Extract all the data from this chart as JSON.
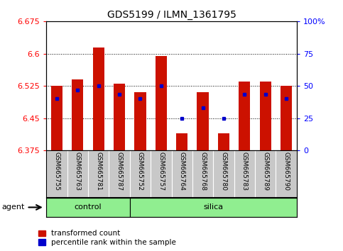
{
  "title": "GDS5199 / ILMN_1361795",
  "samples": [
    "GSM665755",
    "GSM665763",
    "GSM665781",
    "GSM665787",
    "GSM665752",
    "GSM665757",
    "GSM665764",
    "GSM665768",
    "GSM665780",
    "GSM665783",
    "GSM665789",
    "GSM665790"
  ],
  "groups": [
    "control",
    "control",
    "control",
    "control",
    "silica",
    "silica",
    "silica",
    "silica",
    "silica",
    "silica",
    "silica",
    "silica"
  ],
  "red_values": [
    6.525,
    6.54,
    6.615,
    6.53,
    6.51,
    6.595,
    6.415,
    6.51,
    6.415,
    6.535,
    6.535,
    6.525
  ],
  "blue_values": [
    6.495,
    6.515,
    6.525,
    6.505,
    6.495,
    6.525,
    6.45,
    6.475,
    6.45,
    6.505,
    6.505,
    6.495
  ],
  "ymin": 6.375,
  "ymax": 6.675,
  "y_ticks_left": [
    6.375,
    6.45,
    6.525,
    6.6,
    6.675
  ],
  "y_ticks_right": [
    0,
    25,
    50,
    75,
    100
  ],
  "bar_color": "#cc1100",
  "dot_color": "#0000cc",
  "label_bg_color": "#c8c8c8",
  "group_bar_color": "#90ee90",
  "legend_items": [
    "transformed count",
    "percentile rank within the sample"
  ],
  "agent_label": "agent",
  "control_label": "control",
  "silica_label": "silica",
  "n_control": 4,
  "n_silica": 8
}
